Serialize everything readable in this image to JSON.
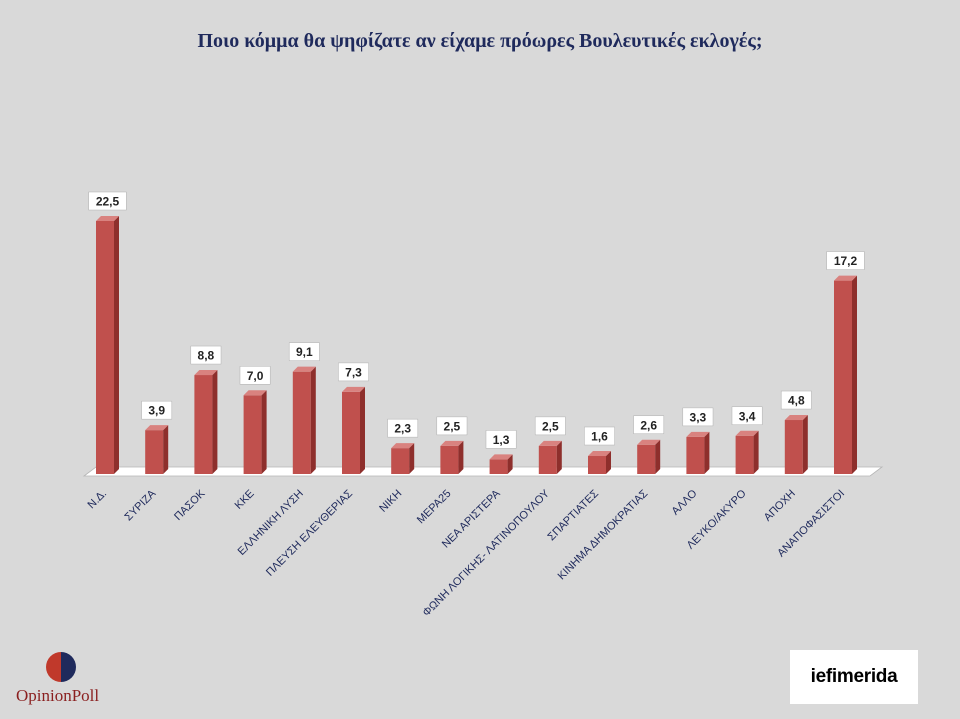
{
  "chart_data": {
    "type": "bar",
    "title": "Ποιο κόμμα θα ψηφίζατε αν είχαμε πρόωρες Βουλευτικές εκλογές;",
    "xlabel": "",
    "ylabel": "",
    "ylim": [
      0,
      25
    ],
    "grid": false,
    "legend": "none",
    "categories": [
      "Ν.Δ.",
      "ΣΥΡΙΖΑ",
      "ΠΑΣΟΚ",
      "ΚΚΕ",
      "ΕΛΛΗΝΙΚΗ ΛΥΣΗ",
      "ΠΛΕΥΣΗ ΕΛΕΥΘΕΡΙΑΣ",
      "ΝΙΚΗ",
      "ΜΕΡΑ25",
      "ΝΕΑ ΑΡΙΣΤΕΡΑ",
      "ΦΩΝΗ ΛΟΓΙΚΗΣ- ΛΑΤΙΝΟΠΟΥΛΟΥ",
      "ΣΠΑΡΤΙΑΤΕΣ",
      "ΚΙΝΗΜΑ ΔΗΜΟΚΡΑΤΙΑΣ",
      "ΑΛΛΟ",
      "ΛΕΥΚΟ/ΑΚΥΡΟ",
      "ΑΠΟΧΗ",
      "ΑΝΑΠΟΦΑΣΙΣΤΟΙ"
    ],
    "values": [
      22.5,
      3.9,
      8.8,
      7.0,
      9.1,
      7.3,
      2.3,
      2.5,
      1.3,
      2.5,
      1.6,
      2.6,
      3.3,
      3.4,
      4.8,
      17.2
    ],
    "value_labels": [
      "22,5",
      "3,9",
      "8,8",
      "7,0",
      "9,1",
      "7,3",
      "2,3",
      "2,5",
      "1,3",
      "2,5",
      "1,6",
      "2,6",
      "3,3",
      "3,4",
      "4,8",
      "17,2"
    ],
    "colors": {
      "bar": "#c0504d",
      "bar_side": "#8e2f2c",
      "bar_top": "#d9827f",
      "floor": "#ffffff"
    }
  },
  "logos": {
    "left": "OpinionPoll",
    "right": "iefimerida"
  }
}
